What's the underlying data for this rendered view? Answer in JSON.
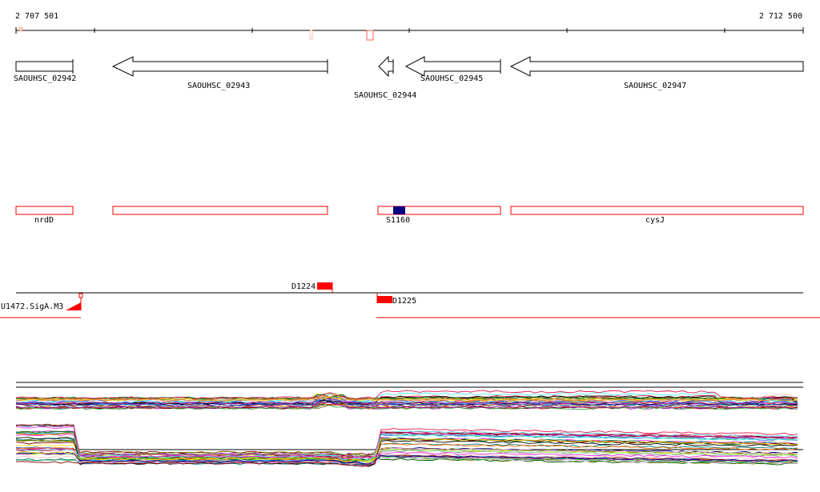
{
  "coordinates": {
    "start": "2 707 501",
    "end": "2 712 500"
  },
  "genes": [
    {
      "locus": "SAOUHSC_02942",
      "strand": "+"
    },
    {
      "locus": "SAOUHSC_02943",
      "strand": "-"
    },
    {
      "locus": "SAOUHSC_02944",
      "strand": "-"
    },
    {
      "locus": "SAOUHSC_02945",
      "strand": "-"
    },
    {
      "locus": "SAOUHSC_02947",
      "strand": "-"
    }
  ],
  "features": [
    {
      "name": "nrdD"
    },
    {
      "name": ""
    },
    {
      "name": "S1160"
    },
    {
      "name": "cysJ"
    }
  ],
  "elements": [
    {
      "name": "D1224"
    },
    {
      "name": "D1225"
    },
    {
      "name": "U1472.SigA.M3"
    }
  ],
  "colors": {
    "axis": "#000000",
    "gene_fill": "#ffffff",
    "feature_outline": "#ff0000",
    "feature_mark": "#000080",
    "element_fill": "#ff0000"
  }
}
